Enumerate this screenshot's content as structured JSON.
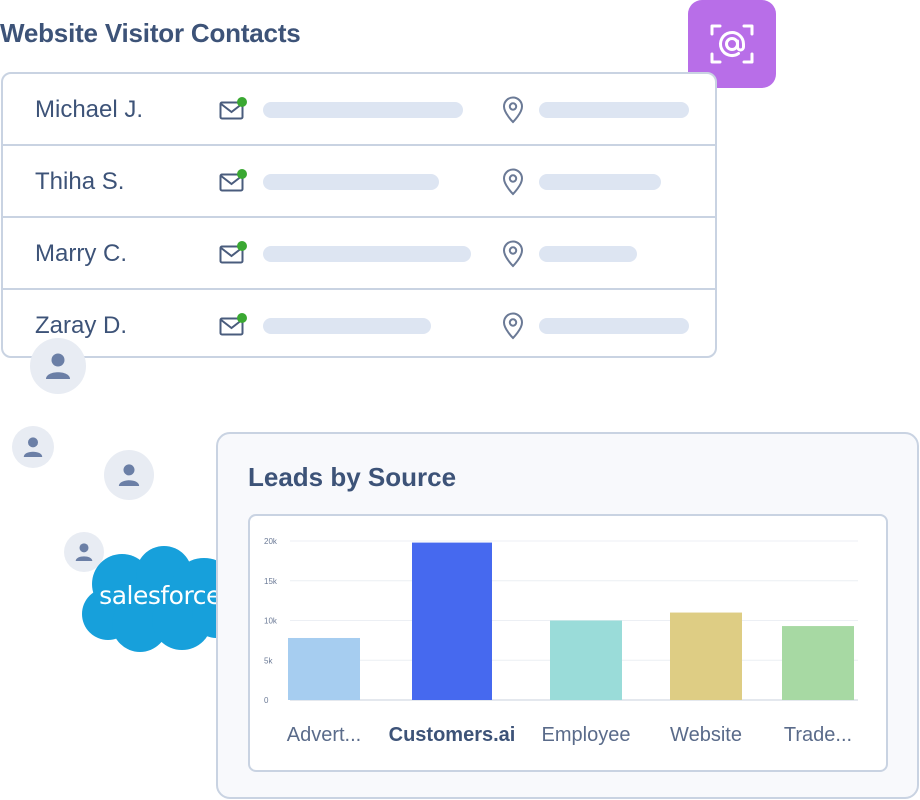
{
  "header": {
    "title": "Website Visitor Contacts"
  },
  "contacts": [
    {
      "name": "Michael J."
    },
    {
      "name": "Thiha S."
    },
    {
      "name": "Marry C."
    },
    {
      "name": "Zaray D."
    }
  ],
  "icons": {
    "scan": "email-scan-icon",
    "mail": "mail-icon",
    "location": "location-pin-icon",
    "avatar": "user-icon",
    "status": "online-dot"
  },
  "colors": {
    "title": "#3d5378",
    "scan_badge": "#b86ee8",
    "online": "#3aa832",
    "salesforce": "#17a0db"
  },
  "integration": {
    "logo_text": "salesforce"
  },
  "leads": {
    "title": "Leads by Source"
  },
  "chart_data": {
    "type": "bar",
    "title": "Leads by Source",
    "categories": [
      "Advert...",
      "Customers.ai",
      "Employee",
      "Website",
      "Trade..."
    ],
    "values": [
      7800,
      19800,
      10000,
      11000,
      9300
    ],
    "highlight": "Customers.ai",
    "colors": [
      "#a6cdf0",
      "#4669ef",
      "#9adcd9",
      "#decd84",
      "#a7d9a3"
    ],
    "ylim": [
      0,
      20000
    ],
    "yticks": [
      "0",
      "5k",
      "10k",
      "15k",
      "20k"
    ],
    "ytick_values": [
      0,
      5000,
      10000,
      15000,
      20000
    ],
    "grid": true,
    "legend": "none"
  }
}
